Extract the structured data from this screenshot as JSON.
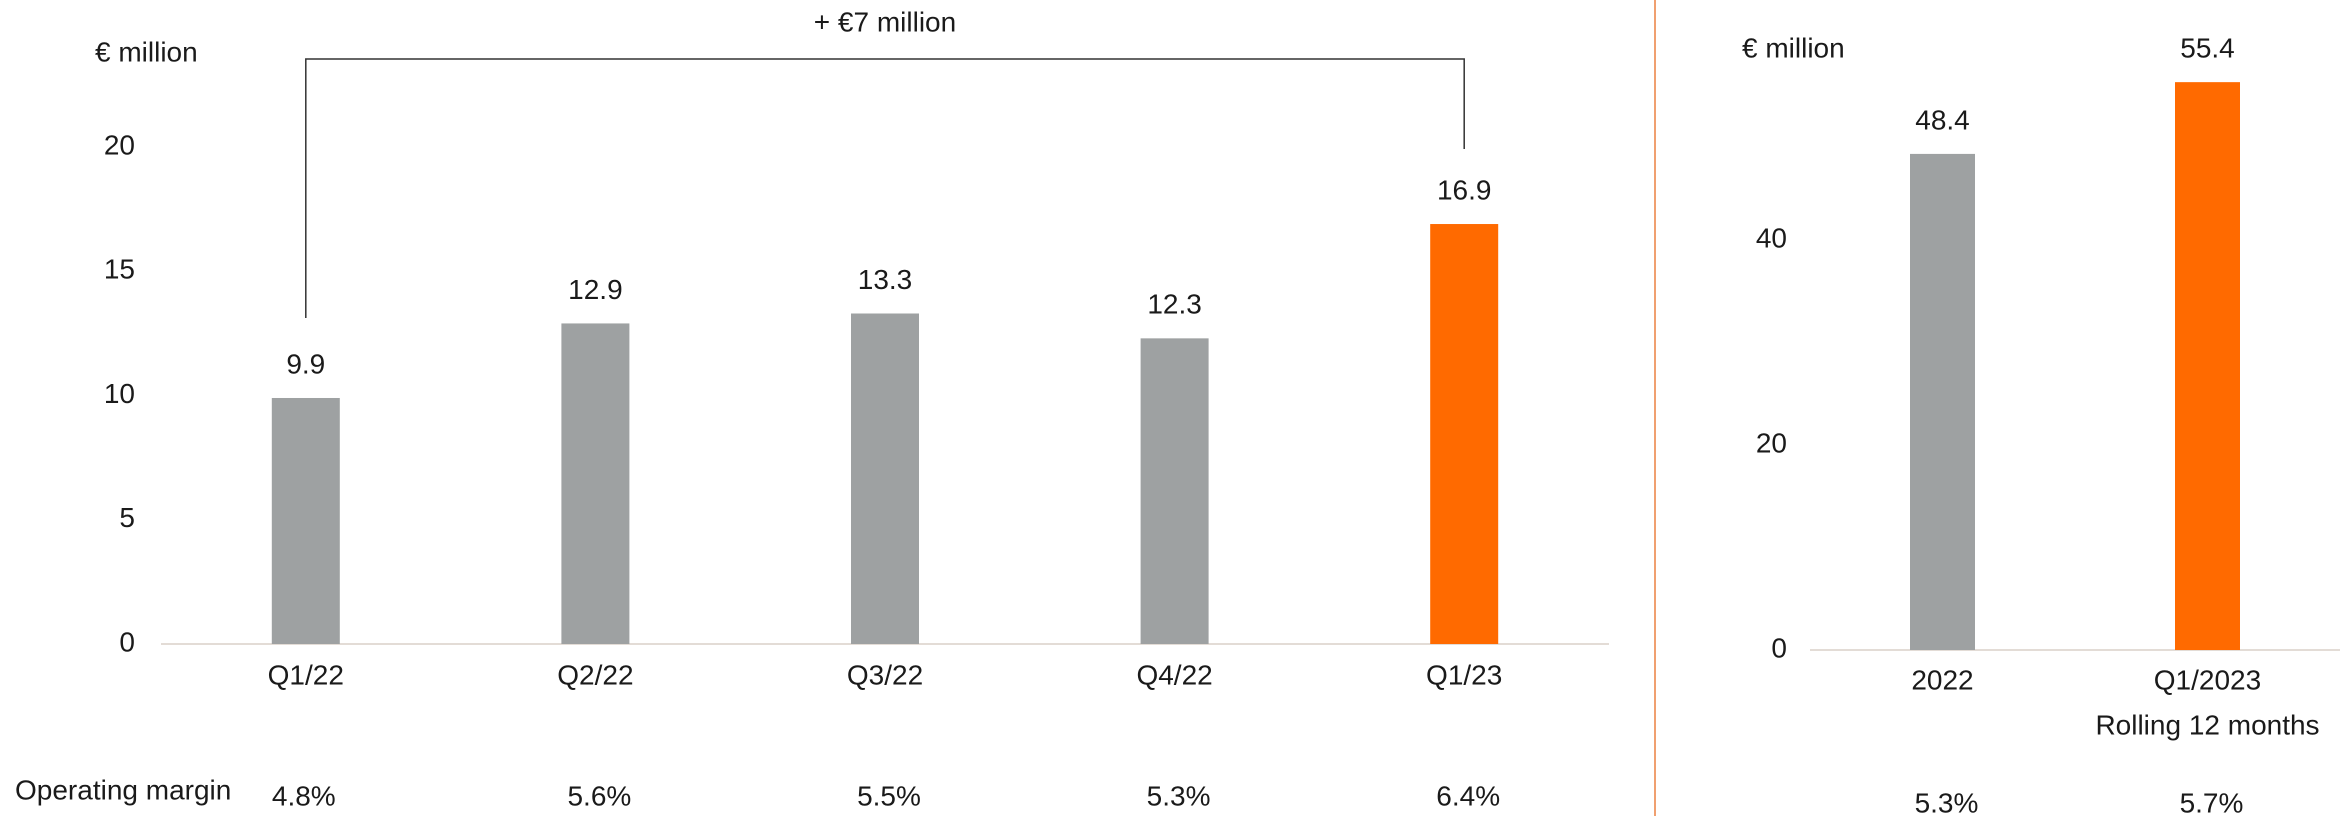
{
  "charts": [
    {
      "type": "bar",
      "axis_label": "€ million",
      "categories": [
        "Q1/22",
        "Q2/22",
        "Q3/22",
        "Q4/22",
        "Q1/23"
      ],
      "values": [
        9.9,
        12.9,
        13.3,
        12.3,
        16.9
      ],
      "colors": [
        "#9ea1a2",
        "#9ea1a2",
        "#9ea1a2",
        "#9ea1a2",
        "#ff6a00"
      ],
      "ylim": [
        0,
        20
      ],
      "yticks": [
        0,
        5,
        10,
        15,
        20
      ],
      "annotation": "+ €7 million",
      "footer_label": "Operating margin",
      "footer_values": [
        "4.8%",
        "5.6%",
        "5.5%",
        "5.3%",
        "6.4%"
      ]
    },
    {
      "type": "bar",
      "axis_label": "€ million",
      "categories": [
        "2022",
        "Q1/2023"
      ],
      "category_notes": [
        null,
        "Rolling 12 months"
      ],
      "values": [
        48.4,
        55.4
      ],
      "colors": [
        "#9ea1a2",
        "#ff6a00"
      ],
      "ylim": [
        0,
        60
      ],
      "yticks": [
        0,
        20,
        40
      ],
      "footer_values": [
        "5.3%",
        "5.7%"
      ]
    }
  ]
}
